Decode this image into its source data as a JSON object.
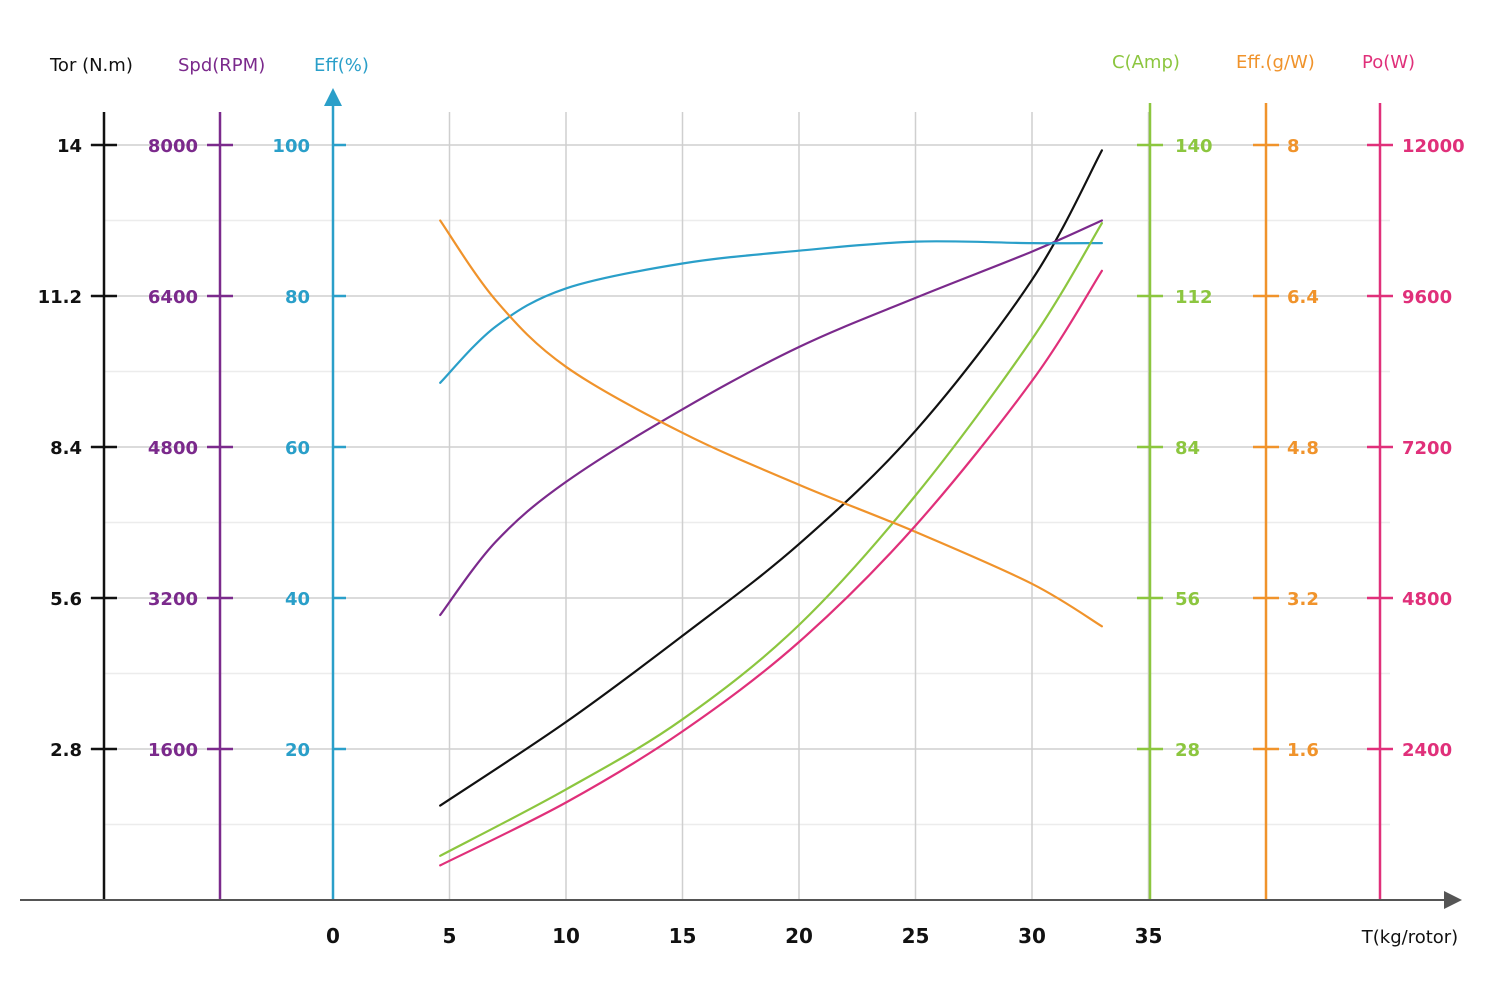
{
  "chart_data": {
    "type": "line",
    "xlabel": "T(kg/rotor)",
    "x_ticks": [
      0,
      5,
      10,
      15,
      20,
      25,
      30,
      35
    ],
    "xlim": [
      0,
      35
    ],
    "grid": true,
    "axes": [
      {
        "id": "tor",
        "title": "Tor (N.m)",
        "color": "#111111",
        "ticks": [
          "14",
          "11.2",
          "8.4",
          "5.6",
          "2.8"
        ],
        "max": 14
      },
      {
        "id": "spd",
        "title": "Spd(RPM)",
        "color": "#7b2a8c",
        "ticks": [
          "8000",
          "6400",
          "4800",
          "3200",
          "1600"
        ],
        "max": 8000
      },
      {
        "id": "eff",
        "title": "Eff(%)",
        "color": "#2a9fc9",
        "ticks": [
          "100",
          "80",
          "60",
          "40",
          "20"
        ],
        "max": 100
      },
      {
        "id": "cur",
        "title": "C(Amp)",
        "color": "#8cc63f",
        "ticks": [
          "140",
          "112",
          "84",
          "56",
          "28"
        ],
        "max": 140
      },
      {
        "id": "effgw",
        "title": "Eff.(g/W)",
        "color": "#f0932b",
        "ticks": [
          "8",
          "6.4",
          "4.8",
          "3.2",
          "1.6"
        ],
        "max": 8
      },
      {
        "id": "po",
        "title": "Po(W)",
        "color": "#e0307a",
        "ticks": [
          "12000",
          "9600",
          "7200",
          "4800",
          "2400"
        ],
        "max": 12000
      }
    ],
    "series": [
      {
        "axis": "tor",
        "color": "#111111",
        "x": [
          4.6,
          10,
          15,
          20,
          25,
          30,
          33
        ],
        "y": [
          1.75,
          3.3,
          4.9,
          6.6,
          8.7,
          11.5,
          13.9
        ]
      },
      {
        "axis": "spd",
        "color": "#7b2a8c",
        "x": [
          4.6,
          7,
          10,
          15,
          20,
          25,
          30,
          33
        ],
        "y": [
          3020,
          3800,
          4430,
          5200,
          5860,
          6380,
          6870,
          7200
        ]
      },
      {
        "axis": "eff",
        "color": "#2a9fc9",
        "x": [
          4.6,
          7,
          10,
          15,
          20,
          25,
          30,
          33
        ],
        "y": [
          68.5,
          76,
          81,
          84.3,
          86,
          87.2,
          87,
          87
        ]
      },
      {
        "axis": "cur",
        "color": "#8cc63f",
        "x": [
          4.6,
          10,
          15,
          20,
          25,
          30,
          33
        ],
        "y": [
          8.2,
          20.5,
          33.5,
          51,
          75,
          104,
          125.5
        ]
      },
      {
        "axis": "effgw",
        "color": "#f0932b",
        "x": [
          4.6,
          7,
          10,
          15,
          20,
          25,
          30,
          33
        ],
        "y": [
          7.2,
          6.35,
          5.65,
          4.95,
          4.4,
          3.9,
          3.35,
          2.9
        ]
      },
      {
        "axis": "po",
        "color": "#e0307a",
        "x": [
          4.6,
          10,
          15,
          20,
          25,
          30,
          33
        ],
        "y": [
          550,
          1550,
          2680,
          4100,
          5950,
          8250,
          10000
        ]
      }
    ]
  }
}
